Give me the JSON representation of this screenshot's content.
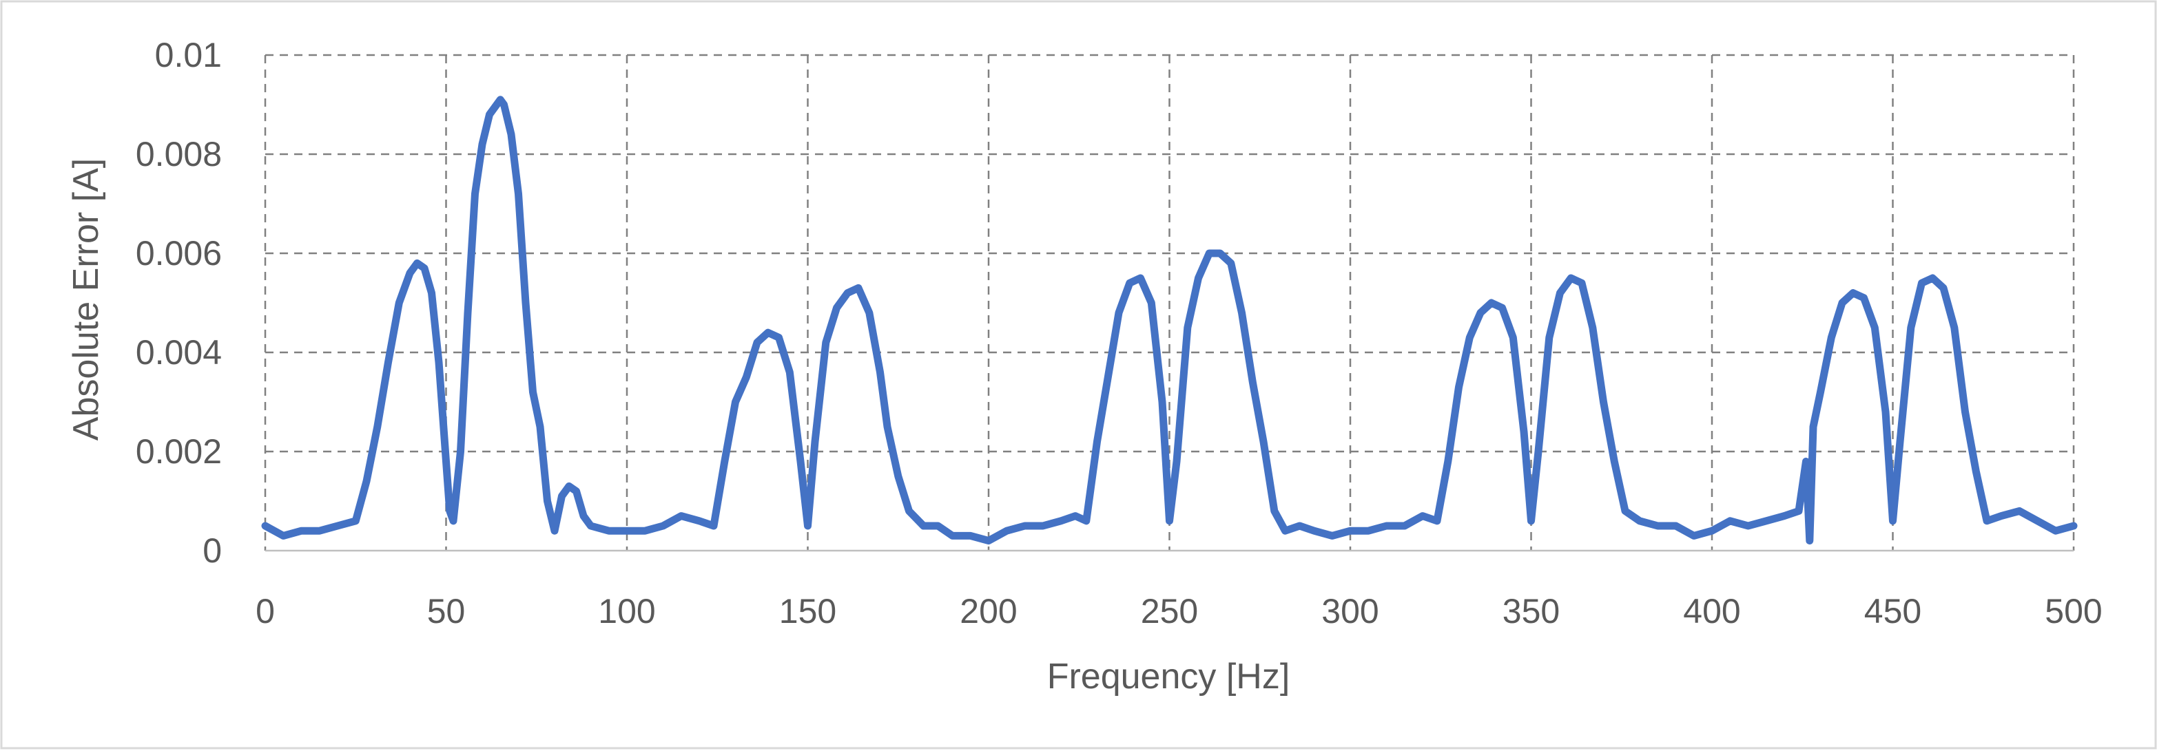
{
  "chart_data": {
    "type": "line",
    "title": "",
    "xlabel": "Frequency [Hz]",
    "ylabel": "Absolute Error [A]",
    "xlim": [
      0,
      500
    ],
    "ylim": [
      0,
      0.01
    ],
    "x_ticks": [
      0,
      50,
      100,
      150,
      200,
      250,
      300,
      350,
      400,
      450,
      500
    ],
    "y_ticks": [
      0,
      0.002,
      0.004,
      0.006,
      0.008,
      0.01
    ],
    "x_tick_labels": [
      "0",
      "50",
      "100",
      "150",
      "200",
      "250",
      "300",
      "350",
      "400",
      "450",
      "500"
    ],
    "y_tick_labels": [
      "0",
      "0.002",
      "0.004",
      "0.006",
      "0.008",
      "0.01"
    ],
    "grid": true,
    "grid_style": "dashed",
    "legend": "none",
    "colors": {
      "series": "#4472C4",
      "grid": "#808080",
      "text": "#595959",
      "frame": "#d9d9d9"
    },
    "series": [
      {
        "name": "",
        "x": [
          0,
          5,
          10,
          15,
          20,
          25,
          28,
          31,
          34,
          37,
          40,
          42,
          44,
          46,
          48,
          50,
          51,
          52,
          54,
          56,
          58,
          60,
          62,
          64,
          65,
          66,
          68,
          70,
          72,
          74,
          76,
          78,
          80,
          82,
          84,
          86,
          88,
          90,
          95,
          100,
          105,
          110,
          115,
          120,
          124,
          127,
          130,
          133,
          136,
          139,
          142,
          145,
          148,
          150,
          152,
          155,
          158,
          161,
          164,
          167,
          170,
          172,
          175,
          178,
          182,
          186,
          190,
          195,
          200,
          205,
          210,
          215,
          220,
          224,
          227,
          230,
          233,
          236,
          239,
          242,
          245,
          248,
          250,
          252,
          255,
          258,
          261,
          264,
          267,
          270,
          273,
          276,
          279,
          282,
          286,
          290,
          295,
          300,
          305,
          310,
          315,
          320,
          324,
          327,
          330,
          333,
          336,
          339,
          342,
          345,
          348,
          350,
          352,
          355,
          358,
          361,
          364,
          367,
          370,
          373,
          376,
          380,
          385,
          390,
          395,
          400,
          405,
          410,
          415,
          420,
          424,
          426,
          427,
          428,
          430,
          433,
          436,
          439,
          442,
          445,
          448,
          450,
          452,
          455,
          458,
          461,
          464,
          467,
          470,
          473,
          476,
          480,
          485,
          490,
          495,
          500
        ],
        "values": [
          0.0005,
          0.0003,
          0.0004,
          0.0004,
          0.0005,
          0.0006,
          0.0014,
          0.0025,
          0.0038,
          0.005,
          0.0056,
          0.0058,
          0.0057,
          0.0052,
          0.0038,
          0.0018,
          0.0008,
          0.0006,
          0.002,
          0.0048,
          0.0072,
          0.0082,
          0.0088,
          0.009,
          0.0091,
          0.009,
          0.0084,
          0.0072,
          0.005,
          0.0032,
          0.0025,
          0.001,
          0.0004,
          0.0011,
          0.0013,
          0.0012,
          0.0007,
          0.0005,
          0.0004,
          0.0004,
          0.0004,
          0.0005,
          0.0007,
          0.0006,
          0.0005,
          0.0018,
          0.003,
          0.0035,
          0.0042,
          0.0044,
          0.0043,
          0.0036,
          0.0018,
          0.0005,
          0.0022,
          0.0042,
          0.0049,
          0.0052,
          0.0053,
          0.0048,
          0.0036,
          0.0025,
          0.0015,
          0.0008,
          0.0005,
          0.0005,
          0.0003,
          0.0003,
          0.0002,
          0.0004,
          0.0005,
          0.0005,
          0.0006,
          0.0007,
          0.0006,
          0.0022,
          0.0035,
          0.0048,
          0.0054,
          0.0055,
          0.005,
          0.003,
          0.0006,
          0.0018,
          0.0045,
          0.0055,
          0.006,
          0.006,
          0.0058,
          0.0048,
          0.0034,
          0.0022,
          0.0008,
          0.0004,
          0.0005,
          0.0004,
          0.0003,
          0.0004,
          0.0004,
          0.0005,
          0.0005,
          0.0007,
          0.0006,
          0.0018,
          0.0033,
          0.0043,
          0.0048,
          0.005,
          0.0049,
          0.0043,
          0.0024,
          0.0006,
          0.002,
          0.0043,
          0.0052,
          0.0055,
          0.0054,
          0.0045,
          0.003,
          0.0018,
          0.0008,
          0.0006,
          0.0005,
          0.0005,
          0.0003,
          0.0004,
          0.0006,
          0.0005,
          0.0006,
          0.0007,
          0.0008,
          0.0018,
          0.0002,
          0.0025,
          0.0032,
          0.0043,
          0.005,
          0.0052,
          0.0051,
          0.0045,
          0.0028,
          0.0006,
          0.0022,
          0.0045,
          0.0054,
          0.0055,
          0.0053,
          0.0045,
          0.0028,
          0.0016,
          0.0006,
          0.0007,
          0.0008,
          0.0006,
          0.0004,
          0.0005
        ]
      }
    ]
  }
}
